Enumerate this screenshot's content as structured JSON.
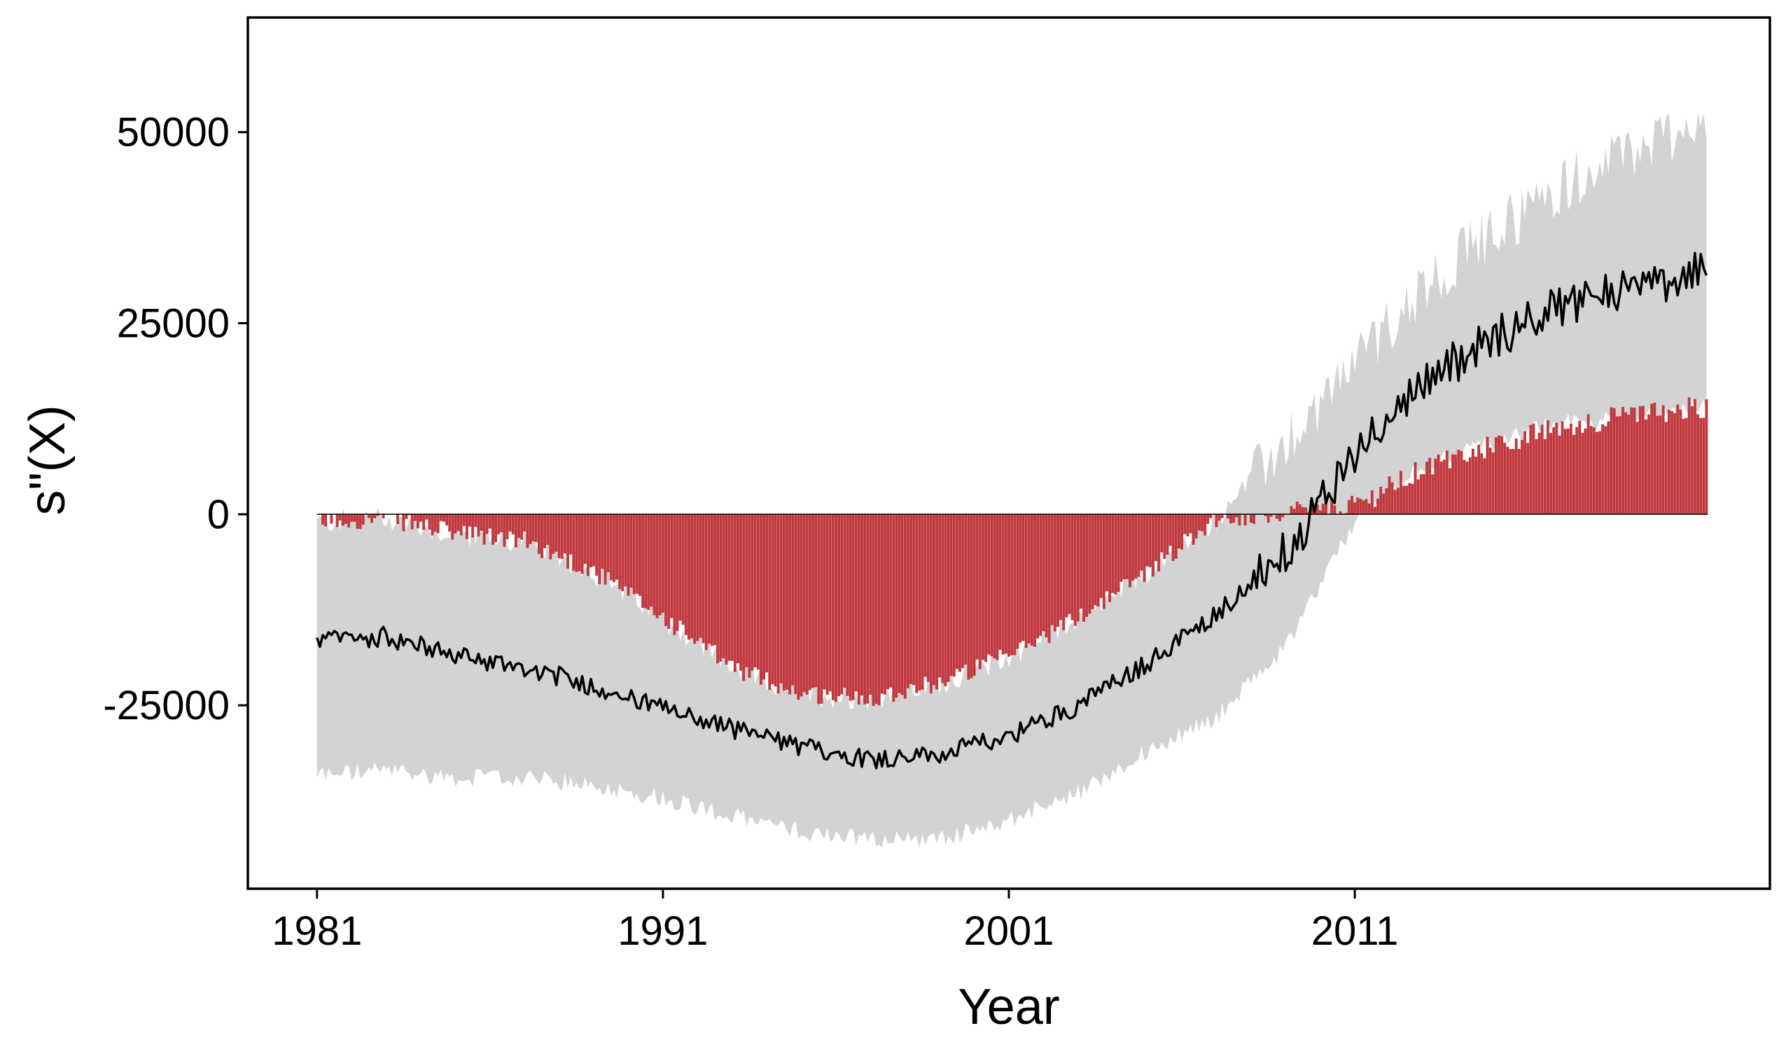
{
  "chart_data": {
    "type": "line",
    "title": "",
    "xlabel": "Year",
    "ylabel": "s\"(X)",
    "xlim": [
      1979,
      2023
    ],
    "ylim": [
      -49000,
      65000
    ],
    "x_ticks": [
      1981,
      1991,
      2001,
      2011
    ],
    "x_tick_labels": [
      "1981",
      "1991",
      "2001",
      "2011"
    ],
    "y_ticks": [
      -25000,
      0,
      25000,
      50000
    ],
    "y_tick_labels": [
      "-25000",
      "0",
      "25000",
      "50000"
    ],
    "grid": false,
    "legend": "none",
    "reference_line_y": 0,
    "colors": {
      "band": "#d3d3d3",
      "bar": "#c1393f",
      "line": "#000000",
      "frame": "#000000"
    },
    "series_keypoints": {
      "years": [
        1981,
        1983,
        1985,
        1987,
        1989,
        1991,
        1993,
        1995,
        1997,
        1999,
        2001,
        2003,
        2005,
        2007,
        2009,
        2011,
        2013,
        2015,
        2017,
        2019,
        2021,
        2021.2
      ],
      "mean": [
        -16500,
        -16000,
        -18500,
        -20000,
        -22500,
        -25500,
        -28000,
        -30500,
        -32000,
        -31500,
        -29000,
        -25000,
        -19500,
        -13000,
        -5000,
        8000,
        17500,
        23000,
        27500,
        29500,
        31500,
        31500
      ],
      "upper": [
        -1000,
        -500,
        -2500,
        -3500,
        -7500,
        -13500,
        -20000,
        -23500,
        -24000,
        -22000,
        -18500,
        -13500,
        -7500,
        -500,
        9500,
        20000,
        30000,
        37000,
        43000,
        47500,
        51500,
        51500
      ],
      "lower": [
        -34000,
        -33500,
        -34500,
        -34500,
        -35500,
        -37000,
        -39500,
        -41500,
        -42500,
        -42500,
        -40000,
        -36500,
        -31000,
        -26500,
        -17500,
        -1000,
        6500,
        9500,
        12000,
        12500,
        14000,
        14000
      ],
      "bar": [
        -1000,
        -500,
        -2500,
        -3500,
        -7500,
        -13500,
        -20000,
        -23500,
        -24000,
        -22000,
        -18500,
        -13500,
        -7500,
        -500,
        0,
        1000,
        6000,
        9000,
        11500,
        13000,
        14000,
        14000
      ]
    }
  }
}
